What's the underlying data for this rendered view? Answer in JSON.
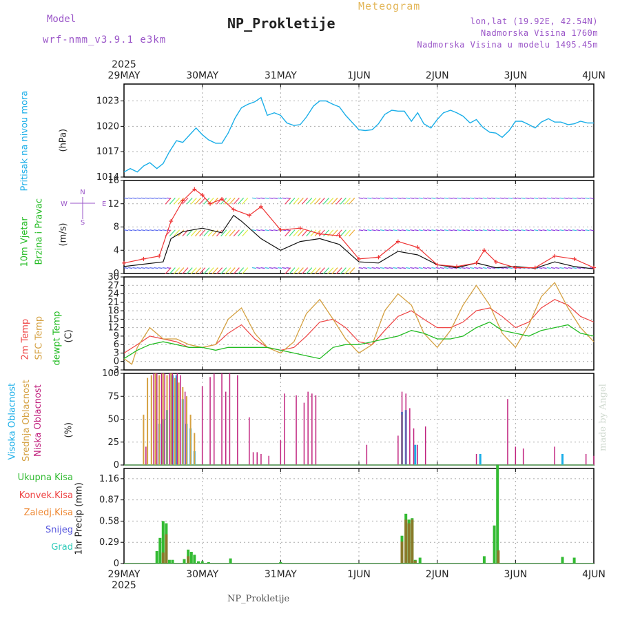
{
  "header": {
    "subtitle": "Meteogram",
    "title": "NP_Prokletije",
    "model_label": "Model",
    "model_value": "wrf-nmm_v3.9.1 e3km",
    "coords": "lon,lat (19.92E, 42.54N)",
    "elevation": "Nadmorska Visina 1760m",
    "model_elevation": "Nadmorska Visina u modelu 1495.45m"
  },
  "footer": {
    "station": "NP_Prokletije",
    "credit": "made by Angel"
  },
  "colors": {
    "pressure": "#1aaee8",
    "temp2m": "#ee4444",
    "sfc": "#d4a040",
    "dewpt": "#22bb22",
    "high_cloud": "#1aaee8",
    "mid_cloud": "#d4a040",
    "low_cloud": "#c0227e",
    "total_precip": "#33bb33",
    "conv_precip": "#ee4444",
    "frozen": "#ee8833",
    "snow": "#5555dd",
    "graupel": "#33ccbb",
    "wind_gust": "#ee3333",
    "wind_speed": "#111111",
    "violet": "#9a55c8"
  },
  "chart_data": [
    {
      "id": "pressure",
      "type": "line",
      "ylabel_main": "Pritisak na nivou mora",
      "ylabel_unit": "(hPa)",
      "ylim": [
        1014,
        1025
      ],
      "yticks": [
        1014,
        1017,
        1020,
        1023
      ],
      "grid": true,
      "x_start_year": "2025",
      "xtick_labels": [
        "29MAY",
        "30MAY",
        "31MAY",
        "1JUN",
        "2JUN",
        "3JUN",
        "4JUN"
      ],
      "x_days": [
        0,
        1,
        2,
        3,
        4,
        5,
        6
      ],
      "series": [
        {
          "name": "sea level pressure",
          "x": [
            0,
            0.08,
            0.17,
            0.25,
            0.33,
            0.42,
            0.5,
            0.58,
            0.67,
            0.75,
            0.83,
            0.92,
            1.0,
            1.08,
            1.17,
            1.25,
            1.33,
            1.42,
            1.5,
            1.58,
            1.67,
            1.75,
            1.83,
            1.92,
            2.0,
            2.08,
            2.17,
            2.25,
            2.33,
            2.42,
            2.5,
            2.58,
            2.67,
            2.75,
            2.83,
            2.92,
            3.0,
            3.08,
            3.17,
            3.25,
            3.33,
            3.42,
            3.5,
            3.58,
            3.67,
            3.75,
            3.83,
            3.92,
            4.0,
            4.08,
            4.17,
            4.25,
            4.33,
            4.42,
            4.5,
            4.58,
            4.67,
            4.75,
            4.83,
            4.92,
            5.0,
            5.08,
            5.17,
            5.25,
            5.33,
            5.42,
            5.5,
            5.58,
            5.67,
            5.75,
            5.83,
            5.92,
            6.0
          ],
          "values": [
            1014.6,
            1015.0,
            1014.6,
            1015.3,
            1015.7,
            1015.0,
            1015.6,
            1017.0,
            1018.3,
            1018.1,
            1018.9,
            1019.8,
            1019.0,
            1018.4,
            1018.0,
            1018.0,
            1019.2,
            1021.0,
            1022.2,
            1022.6,
            1022.9,
            1023.4,
            1021.3,
            1021.6,
            1021.3,
            1020.4,
            1020.1,
            1020.2,
            1021.1,
            1022.4,
            1023.0,
            1023.0,
            1022.6,
            1022.3,
            1021.3,
            1020.4,
            1019.6,
            1019.5,
            1019.6,
            1020.3,
            1021.4,
            1021.9,
            1021.8,
            1021.8,
            1020.6,
            1021.6,
            1020.3,
            1019.8,
            1020.8,
            1021.6,
            1021.9,
            1021.6,
            1021.2,
            1020.4,
            1020.8,
            1019.9,
            1019.3,
            1019.2,
            1018.7,
            1019.5,
            1020.6,
            1020.6,
            1020.2,
            1019.8,
            1020.5,
            1020.9,
            1020.5,
            1020.5,
            1020.2,
            1020.3,
            1020.6,
            1020.4,
            1020.4
          ]
        }
      ]
    },
    {
      "id": "wind",
      "type": "line",
      "ylabel_main": "10m Vjetar",
      "ylabel_sub": "Brzina i Pravac",
      "ylabel_unit": "(m/s)",
      "compass": "N",
      "compass_w": "W",
      "compass_e": "E",
      "compass_s": "S",
      "ylim": [
        0,
        16
      ],
      "yticks": [
        0,
        4,
        8,
        12,
        16
      ],
      "grid": true,
      "series": [
        {
          "name": "10m wind speed",
          "x": [
            0,
            0.25,
            0.5,
            0.6,
            0.75,
            1.0,
            1.25,
            1.4,
            1.5,
            1.75,
            2.0,
            2.25,
            2.5,
            2.75,
            3.0,
            3.25,
            3.5,
            3.75,
            4.0,
            4.25,
            4.5,
            4.75,
            5.0,
            5.25,
            5.5,
            5.75,
            6.0
          ],
          "values": [
            1.2,
            1.6,
            2.0,
            6.0,
            7.2,
            7.8,
            7.0,
            10.0,
            9.0,
            6.0,
            4.0,
            5.5,
            6.0,
            5.0,
            2.0,
            1.8,
            3.8,
            3.2,
            1.5,
            1.0,
            1.8,
            1.0,
            1.2,
            0.9,
            2.0,
            1.2,
            0.8
          ]
        },
        {
          "name": "10m wind gust",
          "x": [
            0,
            0.25,
            0.45,
            0.6,
            0.75,
            0.9,
            1.0,
            1.1,
            1.25,
            1.4,
            1.6,
            1.75,
            2.0,
            2.25,
            2.5,
            2.75,
            3.0,
            3.25,
            3.5,
            3.75,
            4.0,
            4.25,
            4.5,
            4.6,
            4.75,
            5.0,
            5.25,
            5.5,
            5.75,
            6.0
          ],
          "values": [
            1.8,
            2.5,
            3.0,
            9.0,
            12.5,
            14.5,
            13.5,
            12.0,
            12.8,
            11.0,
            10.0,
            11.5,
            7.5,
            7.8,
            6.8,
            6.5,
            2.5,
            2.8,
            5.5,
            4.5,
            1.5,
            1.2,
            1.8,
            4.0,
            2.0,
            1.0,
            1.0,
            3.0,
            2.5,
            1.0
          ]
        }
      ]
    },
    {
      "id": "temperature",
      "type": "line",
      "ylabel_main": "2m Temp",
      "ylabel_sub": "SFC Temp",
      "ylabel_sub2": "dewpt Temp",
      "ylabel_unit": "(C)",
      "ylim": [
        -3,
        30
      ],
      "yticks": [
        -3,
        0,
        3,
        6,
        9,
        12,
        15,
        18,
        21,
        24,
        27,
        30
      ],
      "grid": true,
      "series": [
        {
          "name": "2m Temp",
          "x": [
            0,
            0.17,
            0.33,
            0.5,
            0.67,
            0.83,
            1.0,
            1.17,
            1.33,
            1.5,
            1.67,
            1.83,
            2.0,
            2.17,
            2.33,
            2.5,
            2.67,
            2.83,
            3.0,
            3.17,
            3.33,
            3.5,
            3.67,
            3.83,
            4.0,
            4.17,
            4.33,
            4.5,
            4.67,
            4.83,
            5.0,
            5.17,
            5.33,
            5.5,
            5.67,
            5.83,
            6.0
          ],
          "values": [
            3,
            6,
            9,
            8,
            7,
            5,
            5,
            6,
            10,
            13,
            8,
            5,
            4,
            5,
            9,
            14,
            15,
            12,
            7,
            6,
            11,
            16,
            18,
            15,
            12,
            12,
            14,
            18,
            19,
            16,
            12,
            14,
            19,
            22,
            20,
            16,
            14
          ]
        },
        {
          "name": "SFC Temp",
          "x": [
            0,
            0.1,
            0.17,
            0.33,
            0.5,
            0.67,
            0.83,
            1.0,
            1.17,
            1.33,
            1.5,
            1.67,
            1.83,
            2.0,
            2.17,
            2.33,
            2.5,
            2.67,
            2.83,
            3.0,
            3.17,
            3.33,
            3.5,
            3.67,
            3.83,
            4.0,
            4.17,
            4.33,
            4.5,
            4.67,
            4.83,
            5.0,
            5.17,
            5.33,
            5.5,
            5.67,
            5.83,
            6.0
          ],
          "values": [
            1,
            -1,
            5,
            12,
            8,
            8,
            6,
            5,
            6,
            15,
            19,
            10,
            5,
            3,
            7,
            17,
            22,
            15,
            8,
            3,
            6,
            18,
            24,
            20,
            10,
            5,
            11,
            20,
            27,
            20,
            10,
            5,
            13,
            23,
            28,
            19,
            12,
            7
          ]
        },
        {
          "name": "dewpt Temp",
          "x": [
            0,
            0.17,
            0.33,
            0.5,
            0.67,
            0.83,
            1.0,
            1.17,
            1.33,
            1.5,
            1.67,
            1.83,
            2.0,
            2.17,
            2.33,
            2.5,
            2.67,
            2.83,
            3.0,
            3.17,
            3.33,
            3.5,
            3.67,
            3.83,
            4.0,
            4.17,
            4.33,
            4.5,
            4.67,
            4.83,
            5.0,
            5.17,
            5.33,
            5.5,
            5.67,
            5.83,
            6.0
          ],
          "values": [
            1,
            4,
            6,
            7,
            6,
            5,
            5,
            4,
            5,
            5,
            5,
            5,
            4,
            3,
            2,
            1,
            5,
            6,
            6,
            7,
            8,
            9,
            11,
            10,
            8,
            8,
            9,
            12,
            14,
            11,
            10,
            9,
            11,
            12,
            13,
            10,
            9
          ]
        }
      ]
    },
    {
      "id": "clouds",
      "type": "bar",
      "ylabel_main": "Visoka Oblacnost",
      "ylabel_sub": "Srednja Oblacnost",
      "ylabel_sub2": "Niska Oblacnost",
      "ylabel_unit": "(%)",
      "ylim": [
        0,
        100
      ],
      "yticks": [
        0,
        25,
        50,
        75,
        100
      ],
      "grid": true,
      "series": [
        {
          "name": "Visoka Oblacnost",
          "x": [
            0.45,
            0.5,
            0.55,
            0.62,
            0.67,
            0.75,
            0.8,
            0.85,
            0.9,
            3.55,
            3.6,
            3.72,
            4.55,
            5.6
          ],
          "values": [
            45,
            50,
            60,
            98,
            98,
            72,
            45,
            40,
            15,
            58,
            60,
            22,
            12,
            12
          ]
        },
        {
          "name": "Srednja Oblacnost",
          "x": [
            0.25,
            0.3,
            0.35,
            0.4,
            0.45,
            0.5,
            0.55,
            0.6,
            0.65,
            0.7,
            0.75,
            0.8,
            0.85,
            0.9,
            3.55
          ],
          "values": [
            55,
            95,
            98,
            100,
            98,
            100,
            98,
            100,
            95,
            90,
            85,
            75,
            55,
            35,
            55
          ]
        },
        {
          "name": "Niska Oblacnost",
          "x": [
            0.28,
            0.38,
            0.42,
            0.48,
            0.52,
            0.58,
            0.62,
            0.68,
            0.72,
            0.78,
            1.0,
            1.1,
            1.15,
            1.25,
            1.3,
            1.35,
            1.45,
            1.6,
            1.65,
            1.7,
            1.75,
            1.85,
            2.0,
            2.05,
            2.2,
            2.3,
            2.35,
            2.4,
            2.45,
            3.1,
            3.5,
            3.55,
            3.6,
            3.65,
            3.7,
            3.75,
            3.85,
            4.5,
            4.9,
            5.0,
            5.1,
            5.5,
            5.9,
            6.0
          ],
          "values": [
            20,
            100,
            100,
            100,
            100,
            100,
            100,
            100,
            98,
            80,
            86,
            96,
            100,
            100,
            80,
            100,
            98,
            52,
            14,
            14,
            12,
            10,
            27,
            78,
            76,
            68,
            80,
            78,
            76,
            22,
            32,
            80,
            78,
            62,
            40,
            22,
            42,
            12,
            72,
            20,
            18,
            20,
            12,
            10
          ]
        }
      ]
    },
    {
      "id": "precip",
      "type": "bar",
      "ylabel_main": "1hr Precip (mm)",
      "legend": [
        "Ukupna Kisa",
        "Konvek.Kisa",
        "Zaledj.Kisa",
        "Snijeg",
        "Grad"
      ],
      "ylim": [
        0,
        1.3
      ],
      "yticks": [
        0,
        0.29,
        0.58,
        0.87,
        1.16
      ],
      "grid": true,
      "series": [
        {
          "name": "Ukupna Kisa",
          "x": [
            0.42,
            0.46,
            0.5,
            0.54,
            0.58,
            0.62,
            0.77,
            0.82,
            0.86,
            0.9,
            0.95,
            1.0,
            1.08,
            1.36,
            2.0,
            3.55,
            3.6,
            3.64,
            3.68,
            3.72,
            3.78,
            4.6,
            4.73,
            4.77,
            5.6,
            5.75
          ],
          "values": [
            0.17,
            0.35,
            0.58,
            0.55,
            0.05,
            0.05,
            0.06,
            0.19,
            0.16,
            0.12,
            0.03,
            0.03,
            0.02,
            0.07,
            0.02,
            0.38,
            0.68,
            0.6,
            0.62,
            0.05,
            0.08,
            0.1,
            0.52,
            1.35,
            0.09,
            0.08
          ]
        },
        {
          "name": "Zaledj.Kisa",
          "x": [
            0.5,
            0.54,
            0.82,
            3.55,
            3.6,
            3.64,
            3.68,
            3.72,
            4.78
          ],
          "values": [
            0.15,
            0.4,
            0.1,
            0.3,
            0.6,
            0.55,
            0.6,
            0.04,
            0.18
          ]
        }
      ]
    }
  ]
}
